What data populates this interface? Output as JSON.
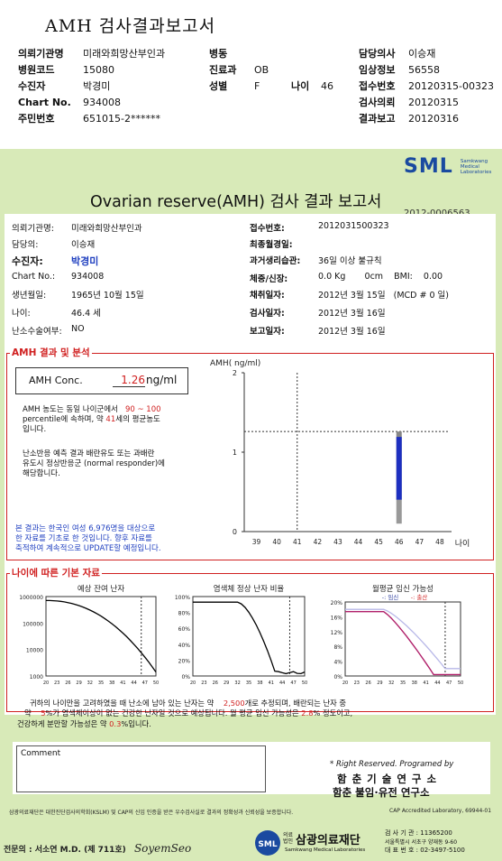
{
  "header": {
    "title": "AMH 검사결과보고서",
    "rows": [
      {
        "l1": "의뢰기관명",
        "v1": "미래와희망산부인과",
        "l2": "병동",
        "v2": "",
        "l4": "담당의사",
        "v4": "이승재"
      },
      {
        "l1": "병원코드",
        "v1": "15080",
        "l2": "진료과",
        "v2": "OB",
        "l4": "임상정보",
        "v4": "56558"
      },
      {
        "l1": "수진자",
        "v1": "박경미",
        "l2": "성별",
        "v2": "F",
        "l3": "나이",
        "v3": "46",
        "l4": "접수번호",
        "v4": "20120315-00323"
      },
      {
        "l1": "Chart No.",
        "v1": "934008",
        "l2": "",
        "v2": "",
        "l4": "검사의뢰",
        "v4": "20120315"
      },
      {
        "l1": "주민번호",
        "v1": "651015-2******",
        "l2": "",
        "v2": "",
        "l4": "결과보고",
        "v4": "20120316"
      }
    ]
  },
  "report": {
    "logo": "SML",
    "logo_sub": [
      "Samkwang",
      "Medical",
      "Laboratories"
    ],
    "title": "Ovarian reserve(AMH) 검사 결과 보고서",
    "report_no": "2012-0006563",
    "left": [
      {
        "k": "의뢰기관명:",
        "v": "미래와희망산부인과"
      },
      {
        "k": "담당의:",
        "v": "이승재"
      },
      {
        "k": "수진자:",
        "v": "박경미"
      },
      {
        "k": "Chart No.:",
        "v": "934008"
      },
      {
        "k": "생년월일:",
        "v": "1965년 10월 15일"
      },
      {
        "k": "나이:",
        "v": "46.4 세"
      },
      {
        "k": "난소수술여부:",
        "v": "NO"
      }
    ],
    "right": [
      {
        "k": "접수번호:",
        "v": "2012031500323"
      },
      {
        "k": "최종월경일:",
        "v": ""
      },
      {
        "k": "과거생리습관:",
        "v": "36일 이상 불규칙"
      },
      {
        "k": "체중/신장:",
        "v": "0.0 Kg       0cm    BMI:    0.00"
      },
      {
        "k": "채취일자:",
        "v": "2012년 3월 15일   (MCD # 0 일)"
      },
      {
        "k": "검사일자:",
        "v": "2012년 3월 16일"
      },
      {
        "k": "보고일자:",
        "v": "2012년 3월 16일"
      }
    ]
  },
  "amh": {
    "section_title": "AMH 결과 및 분석",
    "label": "AMH Conc.",
    "value": "1.26",
    "unit": "ng/ml",
    "p1a": "AMH 농도는 동일 나이군에서",
    "p1b": "90 ~ 100",
    "p1c": "percentile에 속하며, 약",
    "p1d": "41",
    "p1e": "세의 평균농도",
    "p1f": "입니다.",
    "p2": [
      "난소반응 예측 결과 배란유도 또는 과배란",
      "유도시 정상반응군 (normal responder)에",
      "해당합니다."
    ],
    "p3": [
      "본 결과는 한국인 여성 6,976명을 대상으로",
      "한 자료를 기초로 한 것입니다. 향후 자료를",
      "축적하여 계속적으로 UPDATE할 예정입니다."
    ]
  },
  "chart_data": [
    {
      "type": "bar",
      "ylabel": "AMH( ng/ml)",
      "xlabel": "나이",
      "categories": [
        "39",
        "40",
        "41",
        "42",
        "43",
        "44",
        "45",
        "46",
        "47",
        "48"
      ],
      "yticks": [
        0,
        1,
        2
      ],
      "ylim": [
        0,
        2
      ],
      "marker_age": 46,
      "range_top": 1.26,
      "range_bottom": 0.4,
      "range_low": 0.1,
      "ref_age": 41,
      "ref_value": 1.26
    },
    {
      "type": "line",
      "title": "예상 잔여 난자",
      "yticks": [
        "1000000",
        "100000",
        "10000",
        "1000"
      ],
      "xticks": [
        "20",
        "23",
        "26",
        "29",
        "32",
        "35",
        "38",
        "41",
        "44",
        "47",
        "50"
      ]
    },
    {
      "type": "line",
      "title": "염색체 정상 난자 비율",
      "yticks": [
        "100%",
        "80%",
        "60%",
        "40%",
        "20%",
        "0%"
      ],
      "xticks": [
        "20",
        "23",
        "26",
        "29",
        "32",
        "35",
        "38",
        "41",
        "44",
        "47",
        "50"
      ]
    },
    {
      "type": "line",
      "title": "월평균 임신 가능성",
      "legend": [
        "-: 임신",
        "-: 출산"
      ],
      "yticks": [
        "20%",
        "16%",
        "12%",
        "8%",
        "4%",
        "0%"
      ],
      "xticks": [
        "20",
        "23",
        "26",
        "29",
        "32",
        "35",
        "38",
        "41",
        "44",
        "47",
        "50"
      ]
    }
  ],
  "basic": {
    "section_title": "나이에 따른 기본 자료",
    "s1": "귀하의 나이만을 고려하였을 때 난소에 남아 있는 난자는 약",
    "s1v": "2,500",
    "s1e": "개로 추정되며, 배란되는 난자 중",
    "s2": "약",
    "s2v": "5",
    "s2e": "%가 염색체이상이 없는 건강한 난자일 것으로 예상됩니다. 월 평균 임신 가능성은",
    "s2v2": "2.8",
    "s2e2": "% 정도이고,",
    "s3": "건강하게 분만할 가능성은 약",
    "s3v": "0.3",
    "s3e": "%입니다."
  },
  "comment": {
    "label": "Comment",
    "rights": "* Right Reserved. Programed by",
    "org1": "함 춘 기 술 연 구 소",
    "org2": "함춘 불임·유전 연구소"
  },
  "footer": {
    "note": "삼광의료재단은 대한진단검사의학회(KSLM) 및 CAP의 신임 인증을 받은 우수검사실로 결과의 정확성과 신뢰성을 보증합니다.",
    "cap": "CAP Accredited Laboratory, 69944-01",
    "doctor": "전문의 : 서소연 M.D. (제 711호)",
    "signature": "SoyemSeo",
    "brand_small": "의료법인",
    "brand": "삼광의료재단",
    "brand_en": "Samkwang Medical Laboratories",
    "contact": [
      "검 사 기 관 : 11365200",
      "서울특별시 서초구 양재동 9-60",
      "대 표 번 호 : 02-3497-5100"
    ]
  }
}
